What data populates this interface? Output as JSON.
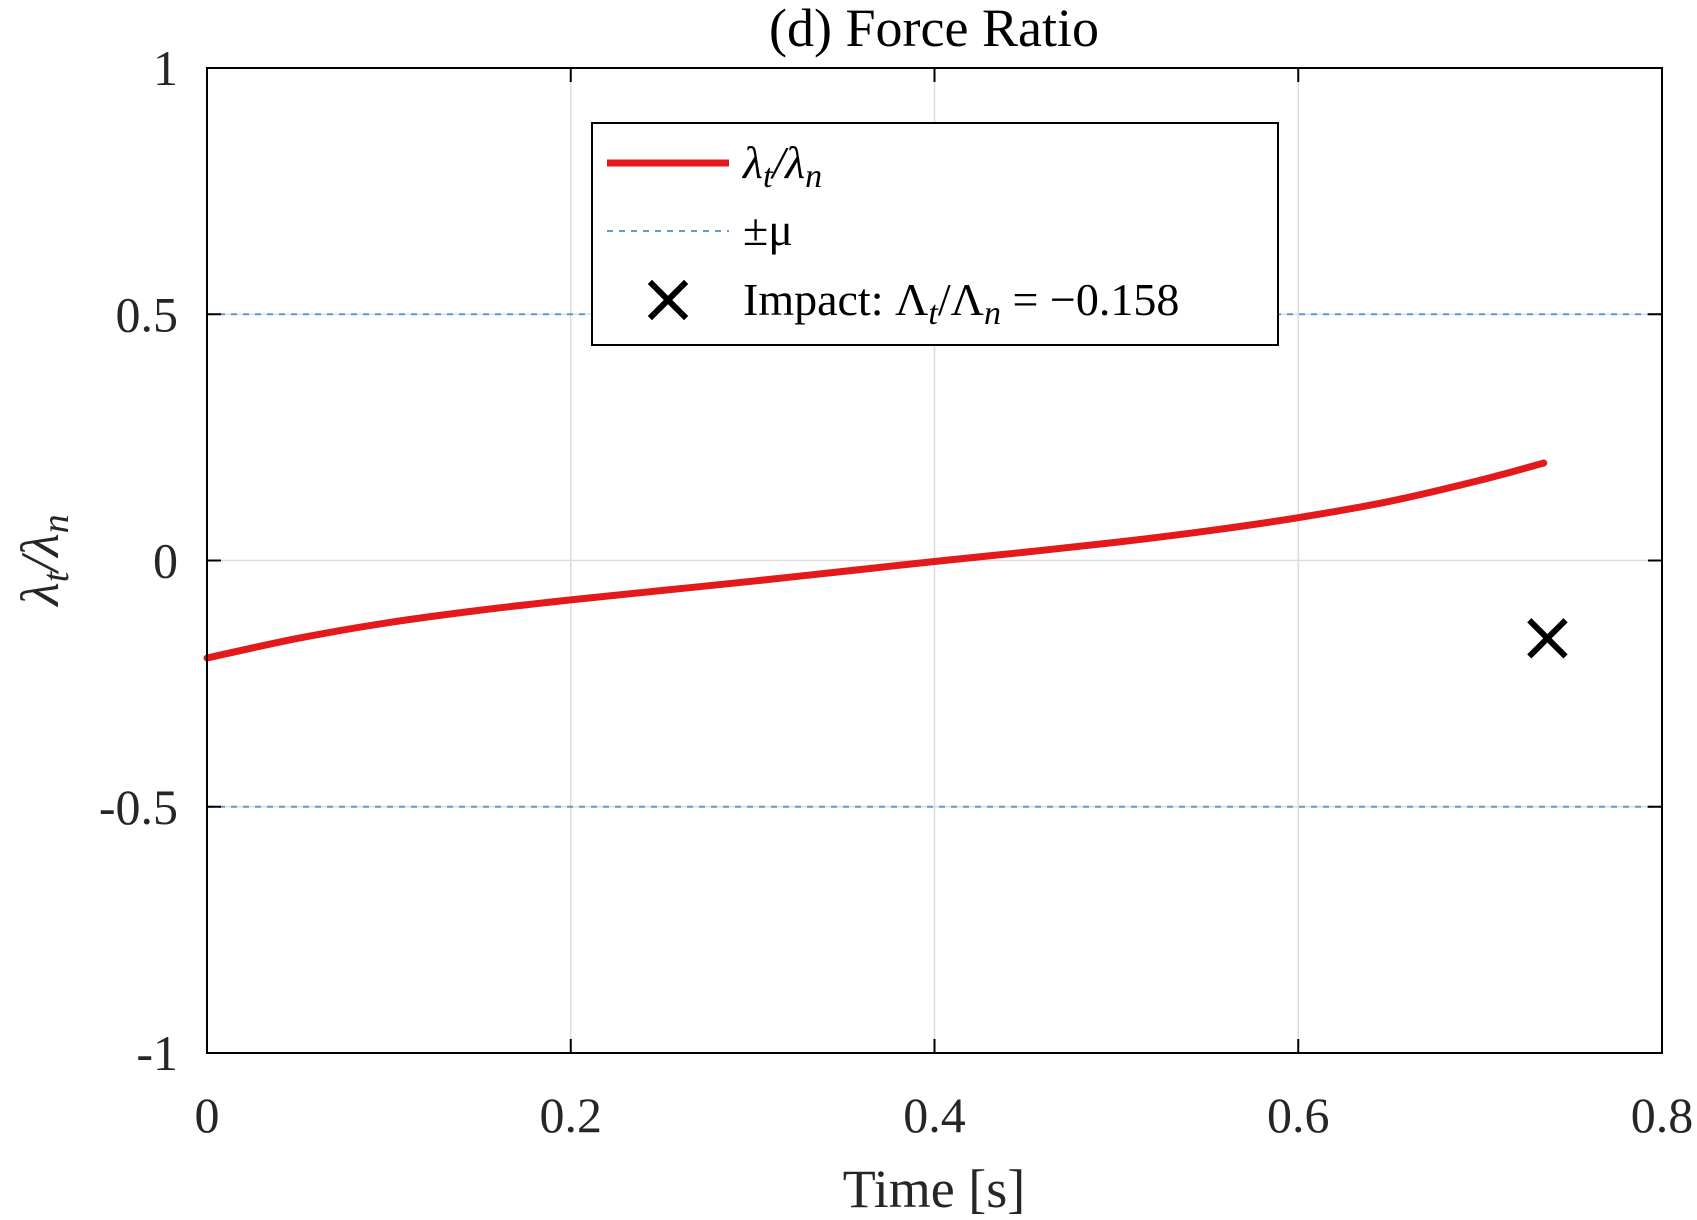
{
  "chart_data": {
    "type": "line",
    "title": "(d) Force Ratio",
    "xlabel": "Time [s]",
    "ylabel_main": "λ",
    "ylabel_sub1": "t",
    "ylabel_mid": "/λ",
    "ylabel_sub2": "n",
    "xlim": [
      0,
      0.8
    ],
    "ylim": [
      -1,
      1
    ],
    "xticks": [
      0,
      0.2,
      0.4,
      0.6,
      0.8
    ],
    "xtick_labels": [
      "0",
      "0.2",
      "0.4",
      "0.6",
      "0.8"
    ],
    "yticks": [
      -1,
      -0.5,
      0,
      0.5,
      1
    ],
    "ytick_labels": [
      "-1",
      "-0.5",
      "0",
      "0.5",
      "1"
    ],
    "grid": true,
    "legend_position": "top-center",
    "colors": {
      "ratio_line": "#e3191c",
      "mu_line": "#5b9bd5",
      "impact_marker": "#000000",
      "grid": "#dcdcdc",
      "axis": "#000000"
    },
    "series": [
      {
        "name": "λt/λn",
        "style": "solid",
        "x": [
          0,
          0.05,
          0.1,
          0.15,
          0.2,
          0.25,
          0.3,
          0.35,
          0.4,
          0.45,
          0.5,
          0.55,
          0.6,
          0.65,
          0.7,
          0.735
        ],
        "y": [
          -0.198,
          -0.158,
          -0.126,
          -0.101,
          -0.08,
          -0.061,
          -0.042,
          -0.022,
          -0.002,
          0.017,
          0.037,
          0.06,
          0.087,
          0.12,
          0.163,
          0.198
        ]
      },
      {
        "name": "±μ",
        "style": "dashed",
        "hlines": [
          0.5,
          -0.5
        ]
      }
    ],
    "impact": {
      "x": 0.737,
      "y": -0.158,
      "marker": "x"
    },
    "legend": {
      "entry1_main": "λ",
      "entry1_sub1": "t",
      "entry1_mid": "/λ",
      "entry1_sub2": "n",
      "entry2": "±μ",
      "entry3_prefix": "Impact: Λ",
      "entry3_sub1": "t",
      "entry3_mid": "/Λ",
      "entry3_sub2": "n",
      "entry3_value": " = −0.158"
    }
  }
}
